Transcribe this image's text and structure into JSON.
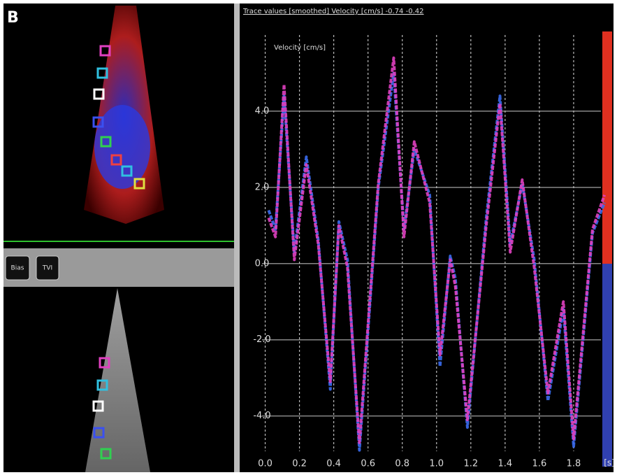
{
  "panel_label": "B",
  "buttons": [
    "Bias",
    "TVI"
  ],
  "chart_data": {
    "type": "line",
    "header": "Trace values [smoothed] Velocity [cm/s]   -0.74   -0.42",
    "y_label": "Velocity [cm/s]",
    "x_unit_label": "[s]",
    "x": [
      0.02,
      0.06,
      0.11,
      0.17,
      0.24,
      0.31,
      0.38,
      0.43,
      0.48,
      0.55,
      0.66,
      0.75,
      0.81,
      0.87,
      0.96,
      1.02,
      1.08,
      1.11,
      1.18,
      1.29,
      1.37,
      1.43,
      1.5,
      1.57,
      1.65,
      1.74,
      1.8,
      1.91,
      1.98
    ],
    "series": [
      {
        "color": "#3a6cf0",
        "values": [
          1.4,
          0.9,
          4.4,
          0.3,
          2.8,
          0.6,
          -3.3,
          1.1,
          0.1,
          -4.9,
          2.0,
          5.0,
          0.9,
          3.0,
          1.8,
          -2.7,
          0.2,
          -0.4,
          -4.3,
          1.2,
          4.4,
          0.5,
          2.1,
          0.1,
          -3.6,
          -1.2,
          -4.8,
          0.8,
          1.6
        ]
      },
      {
        "color": "#e040c0",
        "values": [
          1.2,
          0.7,
          4.7,
          0.1,
          2.6,
          0.5,
          -3.1,
          1.0,
          -0.1,
          -4.7,
          2.1,
          5.4,
          0.7,
          3.2,
          1.6,
          -2.4,
          0.1,
          -0.6,
          -4.1,
          1.0,
          4.2,
          0.3,
          2.2,
          -0.1,
          -3.4,
          -1.0,
          -4.6,
          0.9,
          1.8
        ]
      }
    ],
    "xlim": [
      -0.1,
      2.0
    ],
    "ylim": [
      -5.2,
      6.0
    ],
    "xticks": [
      {
        "value": 0,
        "label": "0.0"
      },
      {
        "value": 0.2,
        "label": "0.2"
      },
      {
        "value": 0.4,
        "label": "0.4"
      },
      {
        "value": 0.6,
        "label": "0.6"
      },
      {
        "value": 0.8,
        "label": "0.8"
      },
      {
        "value": 1.0,
        "label": "1.0"
      },
      {
        "value": 1.2,
        "label": "1.2"
      },
      {
        "value": 1.4,
        "label": "1.4"
      },
      {
        "value": 1.6,
        "label": "1.6"
      },
      {
        "value": 1.8,
        "label": "1.8"
      }
    ],
    "yticks": [
      {
        "value": -4,
        "label": "-4.0"
      },
      {
        "value": -2,
        "label": "-2.0"
      },
      {
        "value": 0,
        "label": "0.0"
      },
      {
        "value": 2,
        "label": "2.0"
      },
      {
        "value": 4,
        "label": "4.0"
      }
    ],
    "grid": true
  }
}
